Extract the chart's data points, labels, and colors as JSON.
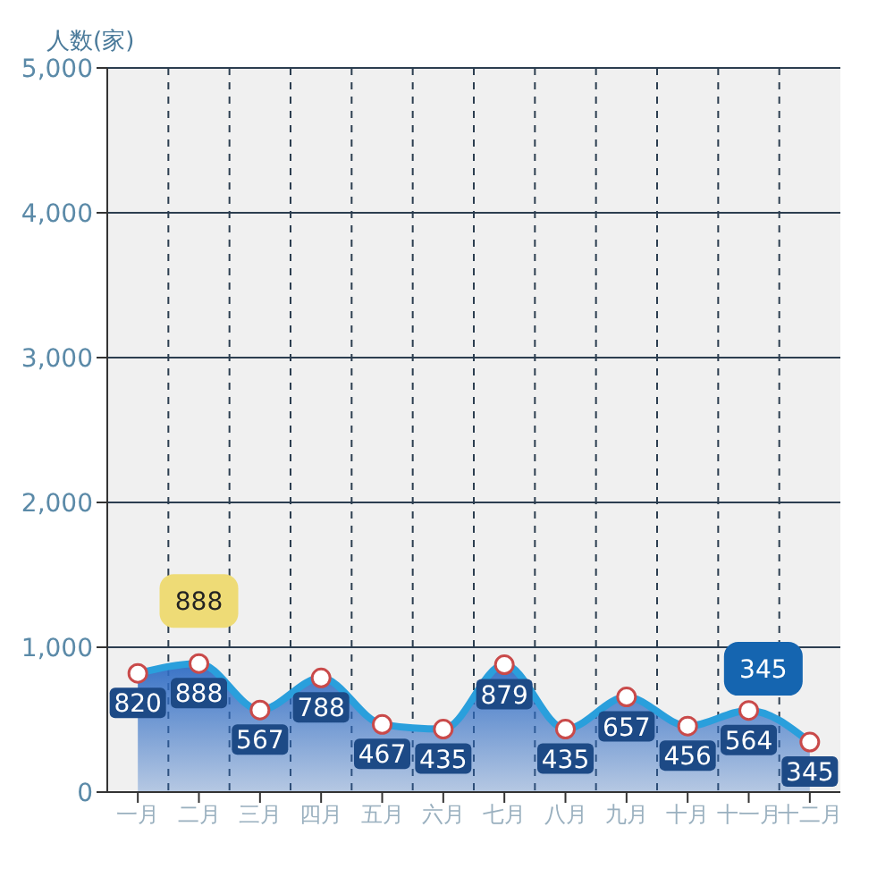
{
  "chart_data": {
    "type": "area",
    "ylabel": "人数(家)",
    "categories": [
      "一月",
      "二月",
      "三月",
      "四月",
      "五月",
      "六月",
      "七月",
      "八月",
      "九月",
      "十月",
      "十一月",
      "十二月"
    ],
    "series": [
      {
        "color": "#2a9fdc",
        "values": [
          820,
          888,
          567,
          788,
          467,
          435,
          879,
          435,
          657,
          456,
          564,
          345
        ]
      }
    ],
    "ylim": [
      0,
      5000
    ],
    "yticks": [
      {
        "value": 0,
        "label": "0"
      },
      {
        "value": 1000,
        "label": "1,000"
      },
      {
        "value": 2000,
        "label": "2,000"
      },
      {
        "value": 3000,
        "label": "3,000"
      },
      {
        "value": 4000,
        "label": "4,000"
      },
      {
        "value": 5000,
        "label": "5,000"
      }
    ],
    "grid": true,
    "marker": "circle",
    "data_labels": true,
    "annotations": [
      {
        "text": "888",
        "x": "二月",
        "y": 888
      },
      {
        "text": "345",
        "x": "十二月",
        "y": 345
      }
    ]
  }
}
